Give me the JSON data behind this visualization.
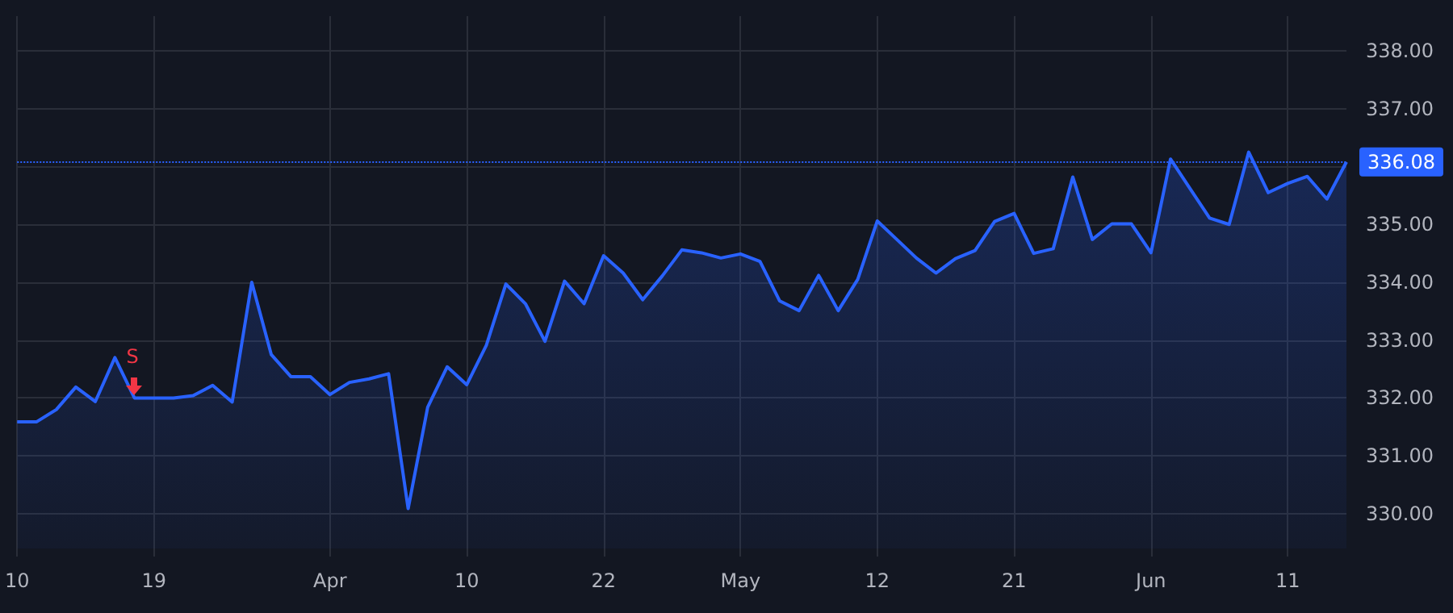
{
  "chart_data": {
    "type": "area",
    "categories": [
      "10",
      null,
      null,
      null,
      null,
      null,
      null,
      "19",
      null,
      null,
      null,
      null,
      null,
      null,
      null,
      null,
      "Apr",
      null,
      null,
      null,
      null,
      null,
      null,
      "10",
      null,
      null,
      null,
      null,
      null,
      null,
      "22",
      null,
      null,
      null,
      null,
      null,
      null,
      "May",
      null,
      null,
      null,
      null,
      null,
      null,
      "12",
      null,
      null,
      null,
      null,
      null,
      null,
      "21",
      null,
      null,
      null,
      null,
      null,
      null,
      "Jun",
      null,
      null,
      null,
      null,
      null,
      null,
      "11",
      null,
      null,
      null
    ],
    "series": [
      {
        "color": "#2962ff",
        "values": [
          331.59,
          331.59,
          331.8,
          332.19,
          331.94,
          332.7,
          332.0,
          332.0,
          332.0,
          332.04,
          332.22,
          331.93,
          334.0,
          332.75,
          332.37,
          332.37,
          332.06,
          332.27,
          332.33,
          332.42,
          330.09,
          331.84,
          332.54,
          332.23,
          332.91,
          333.97,
          333.63,
          332.98,
          334.02,
          333.63,
          334.46,
          334.16,
          333.7,
          334.11,
          334.56,
          334.51,
          334.42,
          334.49,
          334.36,
          333.68,
          333.51,
          334.12,
          333.51,
          334.05,
          335.06,
          334.74,
          334.42,
          334.16,
          334.41,
          334.55,
          335.05,
          335.19,
          334.5,
          334.58,
          335.82,
          334.74,
          335.01,
          335.01,
          334.51,
          336.13,
          335.62,
          335.11,
          335.0,
          336.25,
          335.55,
          335.71,
          335.83,
          335.44,
          336.08
        ]
      }
    ],
    "ylim": [
      329.4,
      338.6
    ],
    "yticks": [
      {
        "value": 330,
        "label": "330.00"
      },
      {
        "value": 331,
        "label": "331.00"
      },
      {
        "value": 332,
        "label": "332.00"
      },
      {
        "value": 333,
        "label": "333.00"
      },
      {
        "value": 334,
        "label": "334.00"
      },
      {
        "value": 335,
        "label": "335.00"
      },
      {
        "value": 336,
        "label": null
      },
      {
        "value": 337,
        "label": "337.00"
      },
      {
        "value": 338,
        "label": "338.00"
      }
    ],
    "ref_lines": [
      {
        "axis": "y",
        "value": 336.08,
        "label": "336.08",
        "color": "#2962ff",
        "line_style": "dotted"
      }
    ],
    "annotations": [
      {
        "text": "S",
        "y": 332.0
      }
    ],
    "grid": true
  }
}
